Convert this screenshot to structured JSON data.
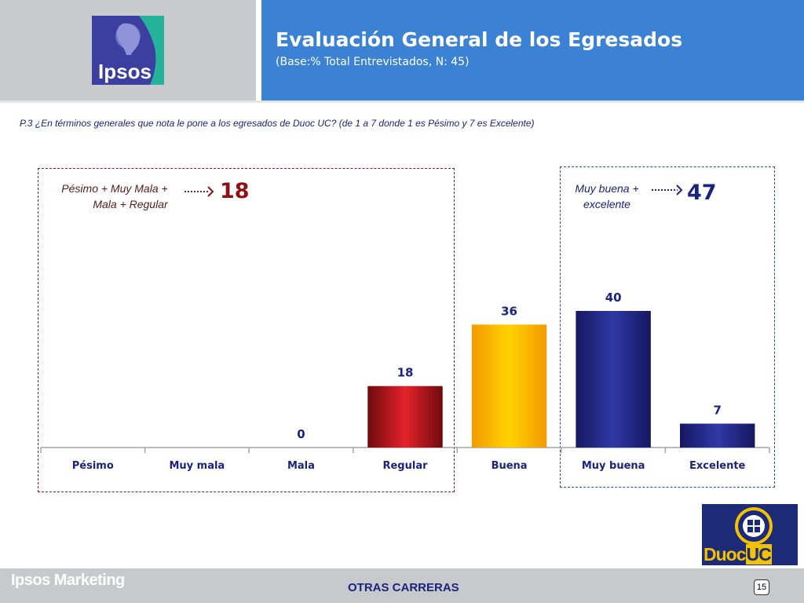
{
  "header": {
    "title": "Evaluación General de los Egresados",
    "subtitle": "(Base:% Total Entrevistados, N: 45)",
    "logo_text": "Ipsos"
  },
  "question": "P.3 ¿En términos generales que nota le pone a los egresados de Duoc UC? (de 1 a 7 donde 1 es Pésimo y 7 es Excelente)",
  "groups": {
    "negative": {
      "label_line1": "Pésimo + Muy Mala +",
      "label_line2": "Mala + Regular",
      "value": "18"
    },
    "positive": {
      "label_line1": "Muy buena +",
      "label_line2": "excelente",
      "value": "47"
    }
  },
  "chart_data": {
    "type": "bar",
    "title": "",
    "xlabel": "",
    "ylabel": "",
    "categories": [
      "Pésimo",
      "Muy mala",
      "Mala",
      "Regular",
      "Buena",
      "Muy buena",
      "Excelente"
    ],
    "values": [
      null,
      null,
      0,
      18,
      36,
      40,
      7
    ],
    "value_labels": [
      "",
      "",
      "0",
      "18",
      "36",
      "40",
      "7"
    ],
    "ylim": [
      0,
      50
    ],
    "grid": false,
    "bar_colors": [
      "#b71c1c",
      "#b71c1c",
      "#b71c1c",
      "#c4121a",
      "#f6b400",
      "#252a86",
      "#252a86"
    ]
  },
  "footer": {
    "brand": "Ipsos Marketing",
    "center": "OTRAS CARRERAS",
    "page": "15",
    "duoc_logo_text_1": "Duoc",
    "duoc_logo_text_2": "UC"
  }
}
